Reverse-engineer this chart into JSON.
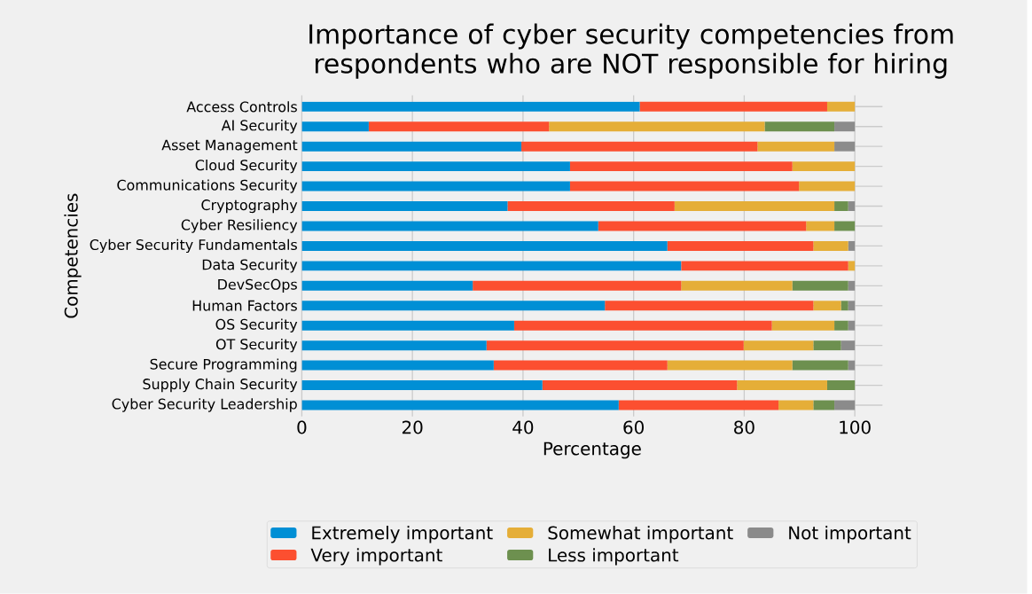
{
  "chart_data": {
    "type": "bar",
    "orientation": "horizontal",
    "stacked": true,
    "title": "Importance of cyber security competencies from respondents who are NOT responsible for hiring",
    "xlabel": "Percentage",
    "ylabel": "Competencies",
    "categories": [
      "Access Controls",
      "AI Security",
      "Asset Management",
      "Cloud Security",
      "Communications Security",
      "Cryptography",
      "Cyber Resiliency",
      "Cyber Security Fundamentals",
      "Data Security",
      "DevSecOps",
      "Human Factors",
      "OS Security",
      "OT Security",
      "Secure Programming",
      "Supply Chain Security",
      "Cyber Security Leadership"
    ],
    "series": [
      {
        "name": "Extremely important",
        "color": "#008fd5",
        "values": [
          61.1,
          12.1,
          39.7,
          48.5,
          48.5,
          37.2,
          53.6,
          66.1,
          68.6,
          30.9,
          54.8,
          38.4,
          33.4,
          34.7,
          43.5,
          57.3
        ]
      },
      {
        "name": "Very important",
        "color": "#fc4f30",
        "values": [
          33.9,
          32.6,
          42.7,
          40.2,
          41.4,
          30.2,
          37.6,
          26.4,
          30.2,
          37.7,
          37.7,
          46.6,
          46.5,
          31.4,
          35.2,
          28.9
        ]
      },
      {
        "name": "Somewhat important",
        "color": "#e5ae38",
        "values": [
          5.0,
          39.0,
          13.9,
          11.3,
          10.1,
          28.9,
          5.1,
          6.3,
          1.2,
          20.1,
          5.0,
          11.3,
          12.6,
          22.6,
          16.3,
          6.3
        ]
      },
      {
        "name": "Less important",
        "color": "#6d904f",
        "values": [
          0,
          12.6,
          0,
          0,
          0,
          2.5,
          3.7,
          0,
          0,
          10.1,
          1.3,
          2.5,
          5.0,
          10.1,
          5.0,
          3.8
        ]
      },
      {
        "name": "Not important",
        "color": "#8b8b8b",
        "values": [
          0,
          3.7,
          3.7,
          0,
          0,
          1.2,
          0,
          1.2,
          0,
          1.2,
          1.2,
          1.2,
          2.5,
          1.2,
          0,
          3.7
        ]
      }
    ],
    "xlim": [
      0,
      105
    ],
    "xticks": [
      0,
      20,
      40,
      60,
      80,
      100
    ],
    "grid": true,
    "legend": "bottom"
  }
}
